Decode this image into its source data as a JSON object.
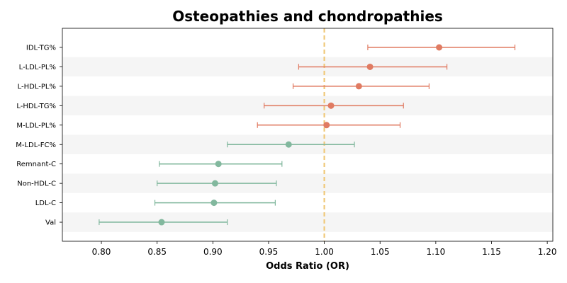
{
  "chart_data": {
    "type": "forest",
    "title": "Osteopathies and chondropathies",
    "xlabel": "Odds Ratio (OR)",
    "ylabel": "",
    "xlim": [
      0.765,
      1.205
    ],
    "xticks": [
      0.8,
      0.85,
      0.9,
      0.95,
      1.0,
      1.05,
      1.1,
      1.15,
      1.2
    ],
    "reference_line": 1.0,
    "reference_line_color": "#f0c878",
    "band_color": "#f5f5f5",
    "colors": {
      "positive": "#e07b62",
      "negative": "#82b89e"
    },
    "rows": [
      {
        "label": "IDL-TG%",
        "or": 1.103,
        "lower": 1.039,
        "upper": 1.171
      },
      {
        "label": "L-LDL-PL%",
        "or": 1.041,
        "lower": 0.977,
        "upper": 1.11
      },
      {
        "label": "L-HDL-PL%",
        "or": 1.031,
        "lower": 0.972,
        "upper": 1.094
      },
      {
        "label": "L-HDL-TG%",
        "or": 1.006,
        "lower": 0.946,
        "upper": 1.071
      },
      {
        "label": "M-LDL-PL%",
        "or": 1.002,
        "lower": 0.94,
        "upper": 1.068
      },
      {
        "label": "M-LDL-FC%",
        "or": 0.968,
        "lower": 0.913,
        "upper": 1.027
      },
      {
        "label": "Remnant-C",
        "or": 0.905,
        "lower": 0.852,
        "upper": 0.962
      },
      {
        "label": "Non-HDL-C",
        "or": 0.902,
        "lower": 0.85,
        "upper": 0.957
      },
      {
        "label": "LDL-C",
        "or": 0.901,
        "lower": 0.848,
        "upper": 0.956
      },
      {
        "label": "Val",
        "or": 0.854,
        "lower": 0.798,
        "upper": 0.913
      }
    ]
  }
}
